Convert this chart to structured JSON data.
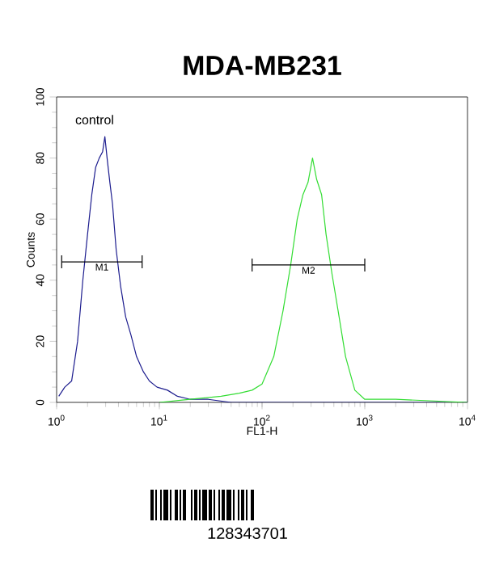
{
  "chart_data": {
    "type": "line",
    "title": "MDA-MB231",
    "xlabel": "FL1-H",
    "ylabel": "Counts",
    "log": "x",
    "xlim": [
      1,
      10000
    ],
    "ylim": [
      0,
      100
    ],
    "xticks": [
      {
        "value": 1,
        "label": "10$^{0}$"
      },
      {
        "value": 10,
        "label": "10$^{1}$"
      },
      {
        "value": 100,
        "label": "10$^{2}$"
      },
      {
        "value": 1000,
        "label": "10$^{3}$"
      },
      {
        "value": 10000,
        "label": "10$^{4}$"
      }
    ],
    "yticks": [
      0,
      20,
      40,
      60,
      80,
      100
    ],
    "grid": false,
    "legend": false,
    "series": [
      {
        "color": "#1c1c8e",
        "x": [
          1.05,
          1.2,
          1.4,
          1.6,
          1.8,
          2.0,
          2.2,
          2.4,
          2.6,
          2.8,
          2.95,
          3.1,
          3.3,
          3.5,
          3.8,
          4.2,
          4.7,
          5.3,
          6.0,
          7.0,
          8.0,
          9.5,
          12,
          15,
          20,
          30,
          50,
          100,
          1000,
          10000
        ],
        "values": [
          2,
          5,
          7,
          20,
          40,
          55,
          68,
          77,
          80,
          82,
          87,
          80,
          72,
          65,
          50,
          38,
          28,
          22,
          15,
          10,
          7,
          5,
          4,
          2,
          1,
          1,
          0,
          0,
          0,
          0
        ]
      },
      {
        "color": "#33dd33",
        "x": [
          10,
          20,
          40,
          60,
          80,
          100,
          130,
          160,
          190,
          220,
          250,
          280,
          310,
          340,
          380,
          420,
          480,
          550,
          650,
          800,
          1000,
          2000,
          10000
        ],
        "values": [
          0,
          1,
          2,
          3,
          4,
          6,
          15,
          30,
          45,
          60,
          68,
          72,
          80,
          73,
          68,
          55,
          42,
          30,
          15,
          4,
          1,
          1,
          0
        ]
      },
      {
        "name": "M1",
        "color": "#000000",
        "x": [
          1.12,
          6.8
        ],
        "values": [
          46,
          46
        ]
      },
      {
        "name": "M2",
        "color": "#000000",
        "x": [
          80,
          1000
        ],
        "values": [
          45,
          45
        ]
      }
    ],
    "annotations": [
      "control",
      "128343701"
    ]
  }
}
